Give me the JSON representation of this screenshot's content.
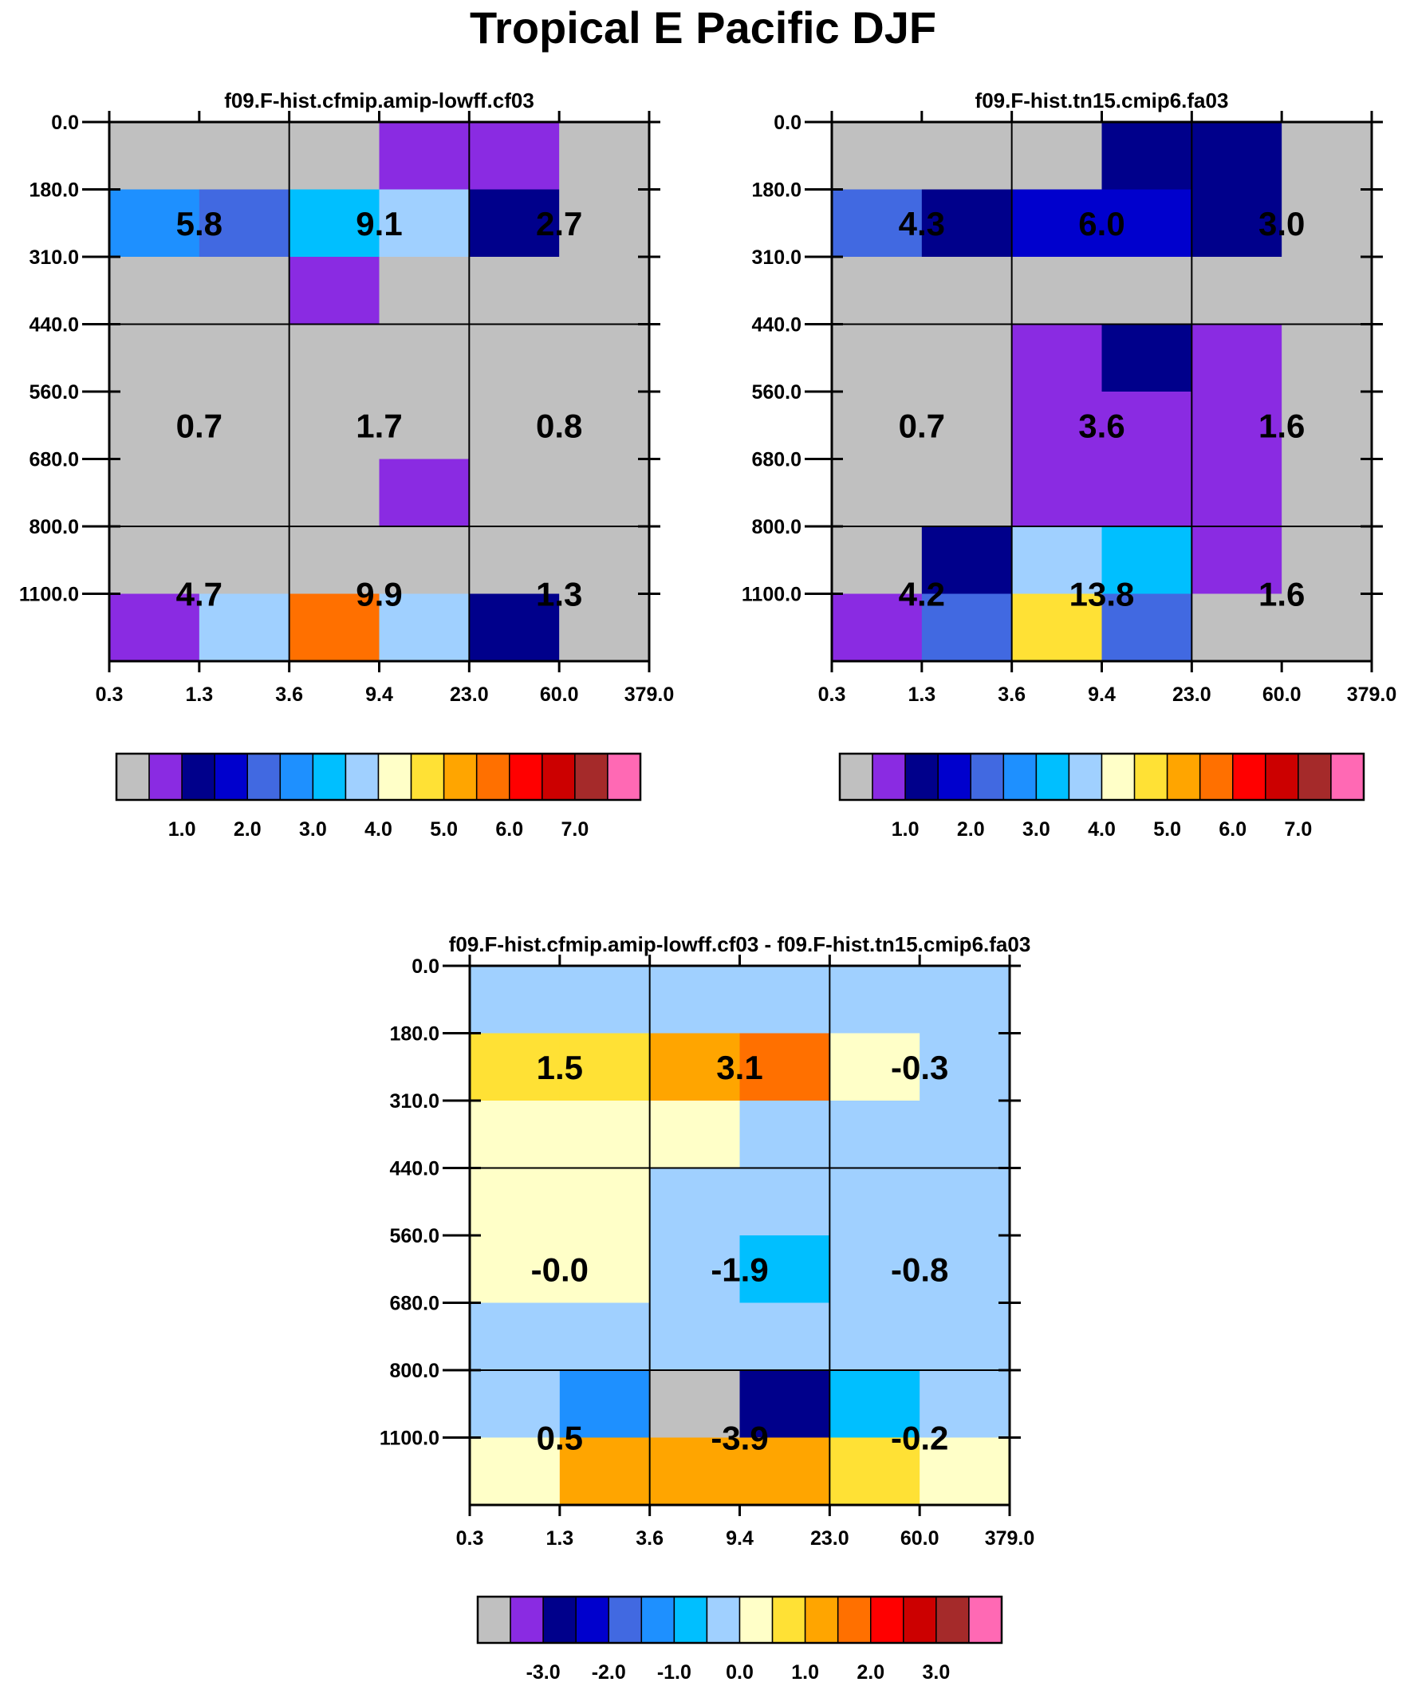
{
  "title": "Tropical E Pacific DJF",
  "x_ticks": [
    "0.3",
    "1.3",
    "3.6",
    "9.4",
    "23.0",
    "60.0",
    "379.0"
  ],
  "y_ticks": [
    "0.0",
    "180.0",
    "310.0",
    "440.0",
    "560.0",
    "680.0",
    "800.0",
    "1100.0"
  ],
  "palette": [
    "#c0c0c0",
    "#8a2be2",
    "#00008b",
    "#0000cd",
    "#4169e1",
    "#1e90ff",
    "#00bfff",
    "#a0d0ff",
    "#ffffc8",
    "#ffe135",
    "#ffa500",
    "#ff7000",
    "#ff0000",
    "#cc0000",
    "#a52a2a",
    "#ff69b4"
  ],
  "chart_data": [
    {
      "type": "heatmap",
      "title": "f09.F-hist.cfmip.amip-lowff.cf03",
      "xlabel": "",
      "ylabel": "",
      "colorbar_labels": [
        "1.0",
        "2.0",
        "3.0",
        "4.0",
        "5.0",
        "6.0",
        "7.0"
      ],
      "cell_colors": [
        [
          0,
          0,
          0,
          1,
          1,
          0
        ],
        [
          5,
          4,
          6,
          7,
          2,
          0
        ],
        [
          0,
          0,
          1,
          0,
          0,
          0
        ],
        [
          0,
          0,
          0,
          0,
          0,
          0
        ],
        [
          0,
          0,
          0,
          0,
          0,
          0
        ],
        [
          0,
          0,
          0,
          1,
          0,
          0
        ],
        [
          0,
          0,
          0,
          0,
          0,
          0
        ],
        [
          1,
          7,
          11,
          7,
          2,
          0
        ]
      ],
      "box_values": [
        [
          "5.8",
          "9.1",
          "2.7"
        ],
        [
          "0.7",
          "1.7",
          "0.8"
        ],
        [
          "4.7",
          "9.9",
          "1.3"
        ]
      ]
    },
    {
      "type": "heatmap",
      "title": "f09.F-hist.tn15.cmip6.fa03",
      "xlabel": "",
      "ylabel": "",
      "colorbar_labels": [
        "1.0",
        "2.0",
        "3.0",
        "4.0",
        "5.0",
        "6.0",
        "7.0"
      ],
      "cell_colors": [
        [
          0,
          0,
          0,
          2,
          2,
          0
        ],
        [
          4,
          2,
          3,
          3,
          2,
          0
        ],
        [
          0,
          0,
          0,
          0,
          0,
          0
        ],
        [
          0,
          0,
          1,
          2,
          1,
          0
        ],
        [
          0,
          0,
          1,
          1,
          1,
          0
        ],
        [
          0,
          0,
          1,
          1,
          1,
          0
        ],
        [
          0,
          2,
          7,
          6,
          1,
          0
        ],
        [
          1,
          4,
          9,
          4,
          0,
          0
        ]
      ],
      "box_values": [
        [
          "4.3",
          "6.0",
          "3.0"
        ],
        [
          "0.7",
          "3.6",
          "1.6"
        ],
        [
          "4.2",
          "13.8",
          "1.6"
        ]
      ]
    },
    {
      "type": "heatmap",
      "title": "f09.F-hist.cfmip.amip-lowff.cf03 - f09.F-hist.tn15.cmip6.fa03",
      "xlabel": "",
      "ylabel": "",
      "colorbar_labels": [
        "-3.0",
        "-2.0",
        "-1.0",
        "0.0",
        "1.0",
        "2.0",
        "3.0"
      ],
      "cell_colors": [
        [
          7,
          7,
          7,
          7,
          7,
          7
        ],
        [
          9,
          9,
          10,
          11,
          8,
          7
        ],
        [
          8,
          8,
          8,
          7,
          7,
          7
        ],
        [
          8,
          8,
          7,
          7,
          7,
          7
        ],
        [
          8,
          8,
          7,
          6,
          7,
          7
        ],
        [
          7,
          7,
          7,
          7,
          7,
          7
        ],
        [
          7,
          5,
          0,
          2,
          6,
          7
        ],
        [
          8,
          10,
          10,
          10,
          9,
          8
        ]
      ],
      "box_values": [
        [
          "1.5",
          "3.1",
          "-0.3"
        ],
        [
          "-0.0",
          "-1.9",
          "-0.8"
        ],
        [
          "0.5",
          "-3.9",
          "-0.2"
        ]
      ]
    }
  ]
}
